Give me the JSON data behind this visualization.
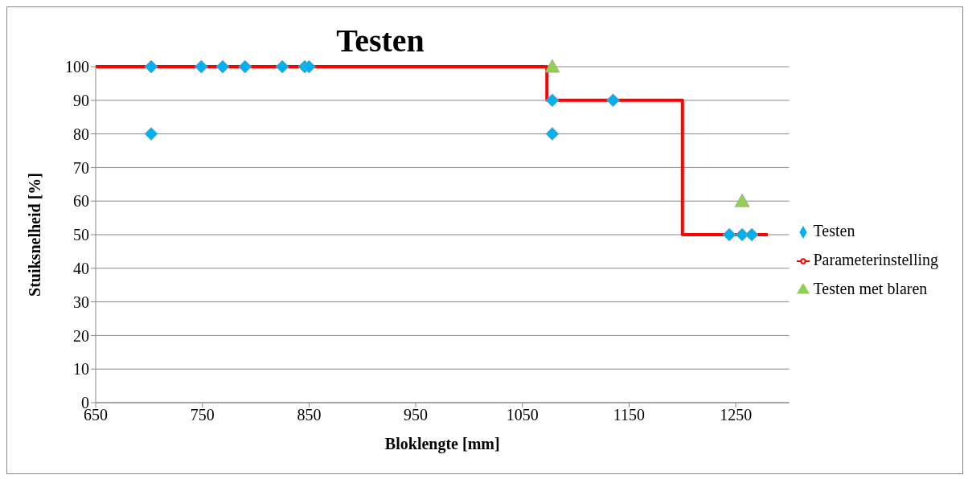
{
  "chart_data": {
    "type": "scatter",
    "title": "Testen",
    "xlabel": "Bloklengte [mm]",
    "ylabel": "Stuiksnelheid [%]",
    "xlim": [
      650,
      1300
    ],
    "xticks": [
      650,
      750,
      850,
      950,
      1050,
      1150,
      1250
    ],
    "ylim": [
      0,
      100
    ],
    "yticks": [
      0,
      10,
      20,
      30,
      40,
      50,
      60,
      70,
      80,
      90,
      100
    ],
    "grid": "y",
    "legend": "right",
    "series": [
      {
        "name": "Testen",
        "marker": "diamond",
        "color": "#00b0f0",
        "x": [
          702,
          702,
          749,
          769,
          790,
          825,
          846,
          850,
          1078,
          1078,
          1135,
          1244,
          1256,
          1265
        ],
        "values": [
          100,
          80,
          100,
          100,
          100,
          100,
          100,
          100,
          90,
          80,
          90,
          50,
          50,
          50
        ]
      },
      {
        "name": "Parameterinstelling",
        "type": "step",
        "marker": "none",
        "color": "#ff0000",
        "x": [
          650,
          1073,
          1200,
          1280
        ],
        "values": [
          100,
          90,
          50,
          50
        ]
      },
      {
        "name": "Testen met blaren",
        "marker": "triangle",
        "color": "#92d050",
        "x": [
          1078,
          1256
        ],
        "values": [
          100,
          60
        ]
      }
    ]
  }
}
